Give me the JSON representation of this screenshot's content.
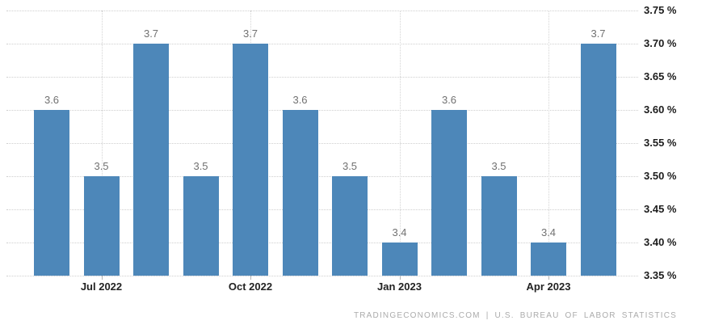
{
  "chart_data": {
    "type": "bar",
    "title": "",
    "xlabel": "",
    "ylabel": "",
    "values": [
      3.6,
      3.5,
      3.7,
      3.5,
      3.7,
      3.6,
      3.5,
      3.4,
      3.6,
      3.5,
      3.4,
      3.7
    ],
    "bar_value_labels": [
      "3.6",
      "3.5",
      "3.7",
      "3.5",
      "3.7",
      "3.6",
      "3.5",
      "3.4",
      "3.6",
      "3.5",
      "3.4",
      "3.7"
    ],
    "x_tick_labels": [
      "Jul 2022",
      "Oct 2022",
      "Jan 2023",
      "Apr 2023"
    ],
    "x_tick_bar_indices": [
      1,
      4,
      7,
      10
    ],
    "y_tick_labels": [
      "3.75 %",
      "3.70 %",
      "3.65 %",
      "3.60 %",
      "3.55 %",
      "3.50 %",
      "3.45 %",
      "3.40 %",
      "3.35 %"
    ],
    "y_tick_values": [
      3.75,
      3.7,
      3.65,
      3.6,
      3.55,
      3.5,
      3.45,
      3.4,
      3.35
    ],
    "ylim": [
      3.35,
      3.75
    ],
    "grid": {
      "horizontal": true,
      "vertical_at_ticks": true,
      "style": "dotted"
    },
    "legend": "none",
    "colors": {
      "bar": "#4d87b9",
      "gridline": "#d0d0d0",
      "value_label": "#717171",
      "axis_label": "#1c1c1c",
      "footer_text": "#ababab",
      "background": "#ffffff"
    }
  },
  "footer": {
    "attribution": "TRADINGECONOMICS.COM | U.S. BUREAU OF LABOR STATISTICS"
  }
}
